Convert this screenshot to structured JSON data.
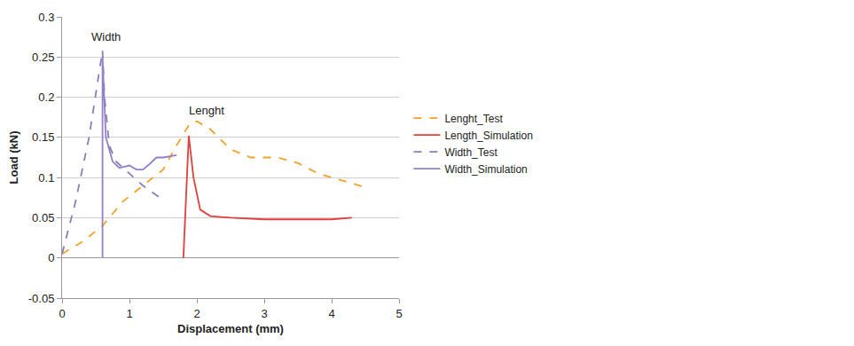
{
  "chart_data": {
    "type": "line",
    "x_label": "Displacement (mm)",
    "y_label": "Load (kN)",
    "xlim": [
      0,
      5
    ],
    "xticks": [
      0,
      1,
      2,
      3,
      4,
      5
    ],
    "ylim": [
      -0.05,
      0.3
    ],
    "yticks": [
      -0.05,
      0,
      0.05,
      0.1,
      0.15,
      0.2,
      0.25,
      0.3
    ],
    "grid": true,
    "legend": "right",
    "annotations": [
      {
        "text": "Width",
        "x": 0.65,
        "y": 0.275
      },
      {
        "text": "Lenght",
        "x": 2.15,
        "y": 0.183
      }
    ],
    "series": [
      {
        "name": "Lenght_Test",
        "color": "#f5a02a",
        "line_style": "dashed",
        "x": [
          0,
          0.3,
          0.6,
          0.9,
          1.2,
          1.5,
          1.7,
          1.9,
          2.0,
          2.2,
          2.5,
          2.8,
          3.2,
          3.5,
          3.8,
          4.2,
          4.5
        ],
        "values": [
          0.005,
          0.02,
          0.04,
          0.07,
          0.09,
          0.11,
          0.14,
          0.168,
          0.17,
          0.16,
          0.135,
          0.125,
          0.125,
          0.118,
          0.105,
          0.095,
          0.088
        ]
      },
      {
        "name": "Length_Simulation",
        "color": "#e0403c",
        "line_style": "solid",
        "x": [
          1.8,
          1.85,
          1.88,
          1.95,
          2.05,
          2.2,
          2.5,
          3.0,
          3.5,
          4.0,
          4.3
        ],
        "values": [
          0,
          0.1,
          0.152,
          0.1,
          0.06,
          0.052,
          0.05,
          0.048,
          0.048,
          0.048,
          0.05
        ]
      },
      {
        "name": "Width_Test",
        "color": "#8a7dbd",
        "line_style": "dashed",
        "x": [
          0,
          0.2,
          0.4,
          0.55,
          0.6,
          0.63,
          0.7,
          0.8,
          1.0,
          1.2,
          1.5
        ],
        "values": [
          0.005,
          0.07,
          0.15,
          0.23,
          0.258,
          0.2,
          0.14,
          0.12,
          0.105,
          0.09,
          0.072
        ]
      },
      {
        "name": "Width_Simulation",
        "color": "#9580c8",
        "line_style": "solid",
        "x": [
          0.6,
          0.6,
          0.65,
          0.75,
          0.85,
          1.0,
          1.1,
          1.2,
          1.3,
          1.4,
          1.5,
          1.7
        ],
        "values": [
          0,
          0.25,
          0.15,
          0.12,
          0.112,
          0.115,
          0.11,
          0.11,
          0.117,
          0.125,
          0.125,
          0.128
        ]
      }
    ]
  }
}
